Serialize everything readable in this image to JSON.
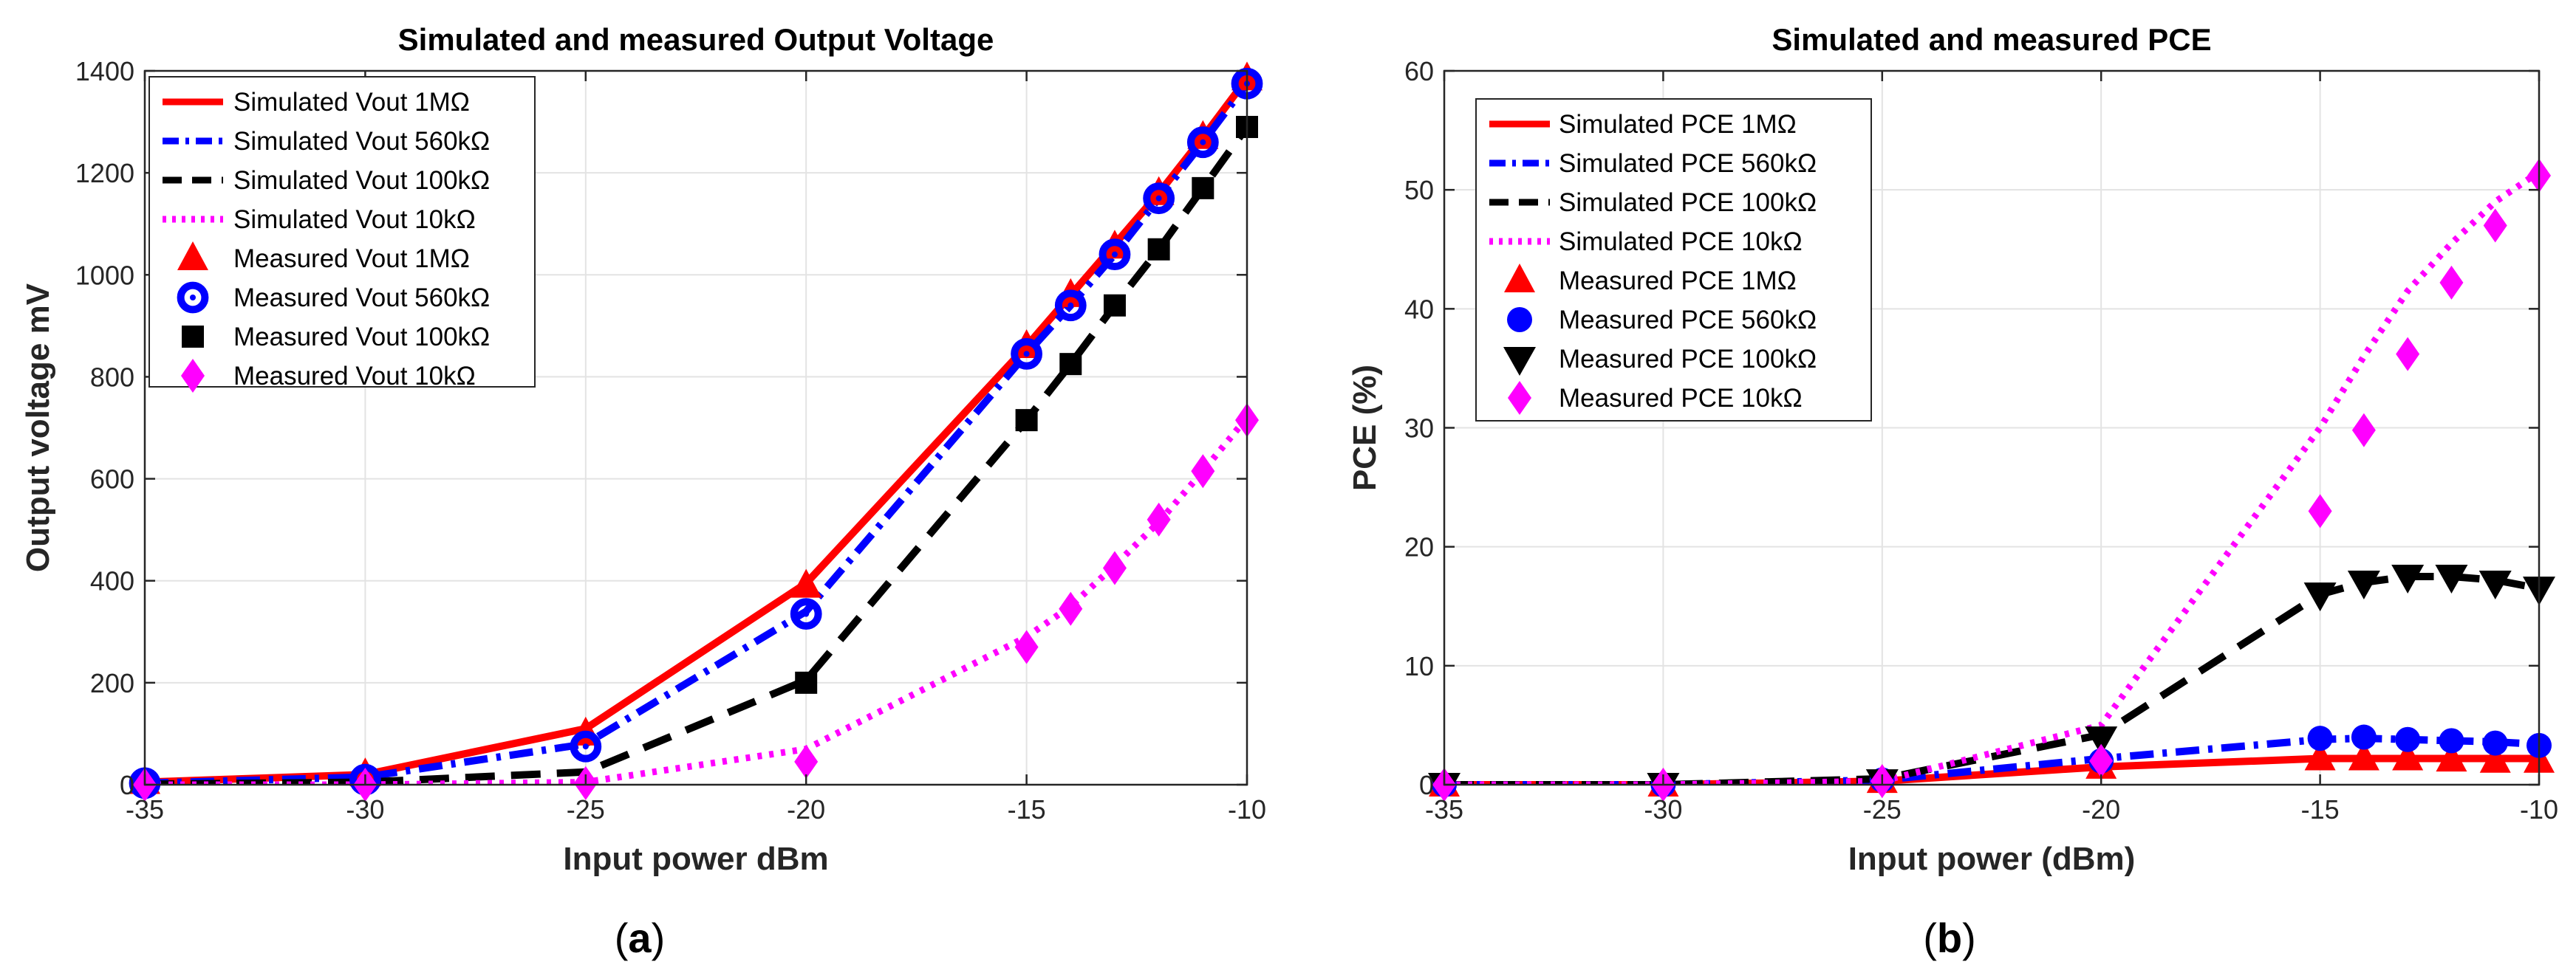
{
  "chart_data": [
    {
      "type": "line",
      "panel_label": "a",
      "title": "Simulated and measured Output Voltage",
      "xlabel": "Input power dBm",
      "ylabel": "Output voltage mV",
      "xlim": [
        -35,
        -10
      ],
      "ylim": [
        0,
        1400
      ],
      "xticks": [
        -35,
        -30,
        -25,
        -20,
        -15,
        -10
      ],
      "yticks": [
        0,
        200,
        400,
        600,
        800,
        1000,
        1200,
        1400
      ],
      "grid": true,
      "legend_position": "top-left",
      "series": [
        {
          "name": "Simulated Vout 1MΩ",
          "kind": "line",
          "style": "solid",
          "color": "#ff0000",
          "x": [
            -35,
            -30,
            -25,
            -20,
            -15,
            -14,
            -13,
            -12,
            -11,
            -10
          ],
          "y": [
            5,
            20,
            110,
            395,
            860,
            960,
            1060,
            1160,
            1270,
            1385
          ]
        },
        {
          "name": "Simulated Vout 560kΩ",
          "kind": "line",
          "style": "dashdot",
          "color": "#0000ff",
          "x": [
            -35,
            -30,
            -25,
            -20,
            -15,
            -14,
            -13,
            -12,
            -11,
            -10
          ],
          "y": [
            3,
            15,
            80,
            340,
            845,
            940,
            1040,
            1150,
            1260,
            1375
          ]
        },
        {
          "name": "Simulated Vout 100kΩ",
          "kind": "line",
          "style": "dashed",
          "color": "#000000",
          "x": [
            -35,
            -30,
            -25,
            -20,
            -15,
            -14,
            -13,
            -12,
            -11,
            -10
          ],
          "y": [
            1,
            5,
            25,
            205,
            715,
            825,
            940,
            1050,
            1170,
            1290
          ]
        },
        {
          "name": "Simulated Vout 10kΩ",
          "kind": "line",
          "style": "dotted",
          "color": "#ff00ff",
          "x": [
            -35,
            -30,
            -25,
            -20,
            -15,
            -14,
            -13,
            -12,
            -11,
            -10
          ],
          "y": [
            0,
            0,
            5,
            70,
            290,
            350,
            430,
            515,
            615,
            720
          ]
        },
        {
          "name": "Measured Vout 1MΩ",
          "kind": "marker",
          "marker": "triangle-up",
          "color": "#ff0000",
          "x": [
            -35,
            -30,
            -25,
            -20,
            -15,
            -14,
            -13,
            -12,
            -11,
            -10
          ],
          "y": [
            5,
            20,
            100,
            390,
            860,
            960,
            1055,
            1160,
            1270,
            1385
          ]
        },
        {
          "name": "Measured Vout 560kΩ",
          "kind": "marker",
          "marker": "circle-dot",
          "color": "#0000ff",
          "x": [
            -35,
            -30,
            -25,
            -20,
            -15,
            -14,
            -13,
            -12,
            -11,
            -10
          ],
          "y": [
            3,
            10,
            75,
            335,
            845,
            940,
            1040,
            1150,
            1260,
            1375
          ]
        },
        {
          "name": "Measured Vout 100kΩ",
          "kind": "marker",
          "marker": "square",
          "color": "#000000",
          "x": [
            -20,
            -15,
            -14,
            -13,
            -12,
            -11,
            -10
          ],
          "y": [
            200,
            715,
            825,
            940,
            1050,
            1170,
            1290
          ]
        },
        {
          "name": "Measured Vout 10kΩ",
          "kind": "marker",
          "marker": "diamond",
          "color": "#ff00ff",
          "x": [
            -35,
            -30,
            -25,
            -20,
            -15,
            -14,
            -13,
            -12,
            -11,
            -10
          ],
          "y": [
            0,
            0,
            3,
            45,
            270,
            345,
            425,
            520,
            615,
            715
          ]
        }
      ]
    },
    {
      "type": "line",
      "panel_label": "b",
      "title": "Simulated and measured PCE",
      "xlabel": "Input power (dBm)",
      "ylabel": "PCE (%)",
      "xlim": [
        -35,
        -10
      ],
      "ylim": [
        0,
        60
      ],
      "xticks": [
        -35,
        -30,
        -25,
        -20,
        -15,
        -10
      ],
      "yticks": [
        0,
        10,
        20,
        30,
        40,
        50,
        60
      ],
      "grid": true,
      "legend_position": "top-left",
      "series": [
        {
          "name": "Simulated PCE 1MΩ",
          "kind": "line",
          "style": "solid",
          "color": "#ff0000",
          "x": [
            -35,
            -30,
            -25,
            -20,
            -15,
            -14,
            -13,
            -12,
            -11,
            -10
          ],
          "y": [
            0,
            0,
            0.3,
            1.5,
            2.2,
            2.2,
            2.2,
            2.2,
            2.2,
            2.2
          ]
        },
        {
          "name": "Simulated PCE 560kΩ",
          "kind": "line",
          "style": "dashdot",
          "color": "#0000ff",
          "x": [
            -35,
            -30,
            -25,
            -20,
            -15,
            -14,
            -13,
            -12,
            -11,
            -10
          ],
          "y": [
            0,
            0,
            0.4,
            2.2,
            3.8,
            3.9,
            3.8,
            3.7,
            3.6,
            3.4
          ]
        },
        {
          "name": "Simulated PCE 100kΩ",
          "kind": "line",
          "style": "dashed",
          "color": "#000000",
          "x": [
            -35,
            -30,
            -25,
            -20,
            -15,
            -14,
            -13,
            -12,
            -11,
            -10
          ],
          "y": [
            0,
            0,
            0.5,
            4.2,
            16.0,
            17.0,
            17.5,
            17.5,
            17.2,
            16.5
          ]
        },
        {
          "name": "Simulated PCE 10kΩ",
          "kind": "line",
          "style": "dotted",
          "color": "#ff00ff",
          "x": [
            -35,
            -30,
            -25,
            -20,
            -15,
            -14,
            -13,
            -12,
            -11,
            -10
          ],
          "y": [
            0,
            0,
            0.3,
            5.0,
            30.0,
            36.0,
            41.5,
            45.5,
            49.0,
            51.5
          ]
        },
        {
          "name": "Measured PCE 1MΩ",
          "kind": "marker",
          "marker": "triangle-up",
          "color": "#ff0000",
          "x": [
            -35,
            -30,
            -25,
            -20,
            -15,
            -14,
            -13,
            -12,
            -11,
            -10
          ],
          "y": [
            0,
            0,
            0.3,
            1.5,
            2.2,
            2.2,
            2.2,
            2.1,
            2.0,
            2.0
          ]
        },
        {
          "name": "Measured PCE 560kΩ",
          "kind": "marker",
          "marker": "circle",
          "color": "#0000ff",
          "x": [
            -35,
            -30,
            -25,
            -20,
            -15,
            -14,
            -13,
            -12,
            -11,
            -10
          ],
          "y": [
            0,
            0,
            0.4,
            2.0,
            3.9,
            4.0,
            3.8,
            3.7,
            3.5,
            3.3
          ]
        },
        {
          "name": "Measured PCE 100kΩ",
          "kind": "marker",
          "marker": "triangle-down",
          "color": "#000000",
          "x": [
            -35,
            -30,
            -25,
            -20,
            -15,
            -14,
            -13,
            -12,
            -11,
            -10
          ],
          "y": [
            0,
            0,
            0.3,
            3.9,
            16.0,
            17.0,
            17.5,
            17.5,
            17.0,
            16.5
          ]
        },
        {
          "name": "Measured PCE 10kΩ",
          "kind": "marker",
          "marker": "diamond",
          "color": "#ff00ff",
          "x": [
            -35,
            -30,
            -25,
            -20,
            -15,
            -14,
            -13,
            -12,
            -11,
            -10
          ],
          "y": [
            0,
            0,
            0.3,
            2.0,
            23.0,
            29.8,
            36.2,
            42.2,
            47.0,
            51.2
          ]
        }
      ]
    }
  ]
}
